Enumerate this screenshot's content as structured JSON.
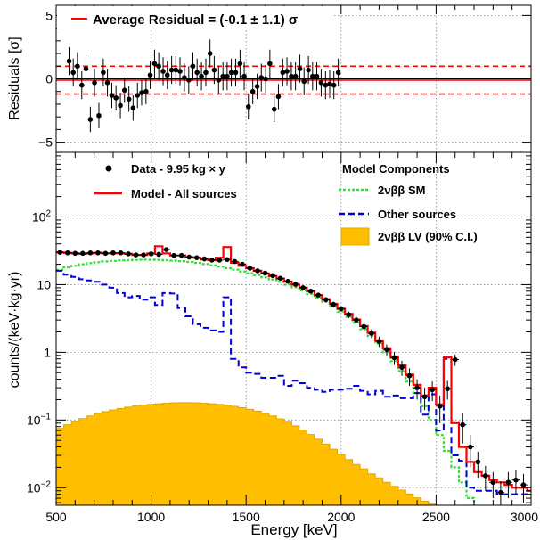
{
  "chart_data": [
    {
      "type": "scatter",
      "panel": "residuals",
      "ylabel": "Residuals [σ]",
      "ylim": [
        -5.8,
        5.8
      ],
      "y_ticks": [
        -5,
        0,
        5
      ],
      "y_tick_labels": [
        "−5",
        "0",
        "5"
      ],
      "grid": true,
      "legend": {
        "placement": "top-left",
        "label": "Average Residual = (-0.1 ± 1.1) σ"
      },
      "colors": {
        "points": "#000000",
        "band": "#ff0000"
      },
      "band": {
        "center": -0.1,
        "width": 1.1
      },
      "points": [
        {
          "x": 568,
          "y": 1.4,
          "err": 1.1
        },
        {
          "x": 590,
          "y": 0.5,
          "err": 1.1
        },
        {
          "x": 612,
          "y": 1.0,
          "err": 1.1
        },
        {
          "x": 635,
          "y": -0.5,
          "err": 1.1
        },
        {
          "x": 657,
          "y": 0.8,
          "err": 1.1
        },
        {
          "x": 680,
          "y": -3.2,
          "err": 1.0
        },
        {
          "x": 702,
          "y": -0.3,
          "err": 1.1
        },
        {
          "x": 725,
          "y": -2.9,
          "err": 1.0
        },
        {
          "x": 748,
          "y": 0.5,
          "err": 1.1
        },
        {
          "x": 770,
          "y": -0.3,
          "err": 1.1
        },
        {
          "x": 793,
          "y": -1.3,
          "err": 1.0
        },
        {
          "x": 815,
          "y": -1.5,
          "err": 1.0
        },
        {
          "x": 838,
          "y": -2.1,
          "err": 1.0
        },
        {
          "x": 860,
          "y": -0.9,
          "err": 1.0
        },
        {
          "x": 883,
          "y": -1.6,
          "err": 1.0
        },
        {
          "x": 905,
          "y": -2.3,
          "err": 1.0
        },
        {
          "x": 928,
          "y": -1.3,
          "err": 1.0
        },
        {
          "x": 950,
          "y": -1.1,
          "err": 1.0
        },
        {
          "x": 973,
          "y": -1.0,
          "err": 1.0
        },
        {
          "x": 995,
          "y": 0.3,
          "err": 1.1
        },
        {
          "x": 1018,
          "y": 1.2,
          "err": 1.1
        },
        {
          "x": 1040,
          "y": 1.0,
          "err": 1.1
        },
        {
          "x": 1063,
          "y": 0.6,
          "err": 1.1
        },
        {
          "x": 1085,
          "y": 0.3,
          "err": 1.1
        },
        {
          "x": 1108,
          "y": 0.7,
          "err": 1.1
        },
        {
          "x": 1130,
          "y": 0.7,
          "err": 1.1
        },
        {
          "x": 1152,
          "y": 0.6,
          "err": 1.1
        },
        {
          "x": 1175,
          "y": 0.1,
          "err": 1.1
        },
        {
          "x": 1198,
          "y": -0.1,
          "err": 1.1
        },
        {
          "x": 1220,
          "y": 1.0,
          "err": 1.1
        },
        {
          "x": 1242,
          "y": 0.5,
          "err": 1.1
        },
        {
          "x": 1265,
          "y": 0.2,
          "err": 1.1
        },
        {
          "x": 1288,
          "y": 0.5,
          "err": 1.1
        },
        {
          "x": 1310,
          "y": 2.0,
          "err": 1.1
        },
        {
          "x": 1332,
          "y": 0.7,
          "err": 1.1
        },
        {
          "x": 1355,
          "y": -0.1,
          "err": 1.1
        },
        {
          "x": 1378,
          "y": 0.2,
          "err": 1.1
        },
        {
          "x": 1400,
          "y": 0.2,
          "err": 1.1
        },
        {
          "x": 1422,
          "y": 0.5,
          "err": 1.1
        },
        {
          "x": 1445,
          "y": 0.5,
          "err": 1.1
        },
        {
          "x": 1468,
          "y": 1.2,
          "err": 1.1
        },
        {
          "x": 1490,
          "y": 0.2,
          "err": 1.1
        },
        {
          "x": 1512,
          "y": -2.2,
          "err": 1.0
        },
        {
          "x": 1535,
          "y": -1.0,
          "err": 1.0
        },
        {
          "x": 1558,
          "y": -0.6,
          "err": 1.0
        },
        {
          "x": 1580,
          "y": 0.1,
          "err": 1.1
        },
        {
          "x": 1603,
          "y": 0.0,
          "err": 1.1
        },
        {
          "x": 1625,
          "y": 1.2,
          "err": 1.1
        },
        {
          "x": 1648,
          "y": -2.4,
          "err": 1.0
        },
        {
          "x": 1670,
          "y": -1.4,
          "err": 1.0
        },
        {
          "x": 1693,
          "y": 0.5,
          "err": 1.1
        },
        {
          "x": 1715,
          "y": 0.6,
          "err": 1.1
        },
        {
          "x": 1738,
          "y": 0.2,
          "err": 1.1
        },
        {
          "x": 1760,
          "y": 0.2,
          "err": 1.1
        },
        {
          "x": 1783,
          "y": 0.8,
          "err": 1.1
        },
        {
          "x": 1805,
          "y": -0.2,
          "err": 1.1
        },
        {
          "x": 1828,
          "y": 0.7,
          "err": 1.1
        },
        {
          "x": 1850,
          "y": 0.2,
          "err": 1.1
        },
        {
          "x": 1872,
          "y": 0.2,
          "err": 1.1
        },
        {
          "x": 1895,
          "y": -0.3,
          "err": 1.1
        },
        {
          "x": 1918,
          "y": -0.5,
          "err": 1.1
        },
        {
          "x": 1940,
          "y": -0.4,
          "err": 1.1
        },
        {
          "x": 1962,
          "y": -0.5,
          "err": 1.1
        },
        {
          "x": 1985,
          "y": 0.5,
          "err": 1.1
        }
      ]
    },
    {
      "type": "line",
      "panel": "spectrum",
      "xlabel": "Energy [keV]",
      "ylabel": "counts/(keV·kg·yr)",
      "xlim": [
        500,
        3000
      ],
      "ylim_log": [
        0.0055,
        900
      ],
      "x_ticks": [
        500,
        1000,
        1500,
        2000,
        2500,
        3000
      ],
      "x_tick_labels": [
        "500",
        "1000",
        "1500",
        "2000",
        "2500",
        "3000"
      ],
      "y_ticks": [
        0.01,
        0.1,
        1,
        10,
        100
      ],
      "grid": true,
      "legend_left": {
        "placement": "top-left",
        "data_label": "Data - 9.95 kg × y",
        "model_label": "Model - All sources"
      },
      "legend_right": {
        "placement": "top-right",
        "title": "Model Components",
        "sm_label": "2νββ SM",
        "other_label": "Other sources",
        "lv_label": "2νββ LV (90% C.I.)"
      },
      "colors": {
        "model": "#ff0000",
        "sm": "#33dd33",
        "other": "#0000dd",
        "lv": "#ffbf00",
        "data": "#000000"
      },
      "bin_edges": [
        500,
        540,
        580,
        620,
        660,
        700,
        740,
        780,
        820,
        860,
        900,
        940,
        980,
        1020,
        1060,
        1100,
        1140,
        1180,
        1220,
        1260,
        1300,
        1340,
        1380,
        1420,
        1460,
        1500,
        1540,
        1580,
        1620,
        1660,
        1700,
        1740,
        1780,
        1820,
        1860,
        1900,
        1940,
        1980,
        2020,
        2060,
        2100,
        2140,
        2180,
        2220,
        2260,
        2300,
        2340,
        2380,
        2420,
        2460,
        2500,
        2540,
        2580,
        2620,
        2660,
        2700,
        2740,
        2780,
        2820,
        2860,
        2900,
        2940,
        2980,
        3020
      ],
      "series": [
        {
          "name": "Model - All sources",
          "values": [
            30,
            29.5,
            29,
            28.5,
            29,
            29.5,
            29,
            29,
            29,
            28.5,
            27.5,
            27.5,
            29,
            37,
            29,
            27,
            27,
            25.5,
            25,
            23.5,
            23,
            25,
            36,
            21,
            19,
            17.5,
            16,
            14.6,
            13.4,
            12.3,
            11.1,
            10.0,
            9.0,
            8.0,
            7.0,
            6.1,
            5.2,
            4.4,
            3.7,
            3.05,
            2.45,
            1.95,
            1.5,
            1.15,
            0.87,
            0.64,
            0.47,
            0.33,
            0.23,
            0.3,
            0.17,
            0.84,
            0.09,
            0.04,
            0.024,
            0.017,
            0.015,
            0.013,
            0.012,
            0.011,
            0.01,
            0.01,
            0.009
          ]
        },
        {
          "name": "2νββ SM",
          "values": [
            16.5,
            18,
            19,
            20,
            20.8,
            21.4,
            22,
            22.4,
            22.8,
            23,
            23.2,
            23.3,
            23.3,
            23.2,
            22.9,
            22.6,
            22.2,
            21.6,
            20.9,
            20.1,
            19.3,
            18.4,
            17.5,
            16.6,
            15.6,
            14.7,
            13.8,
            12.8,
            11.9,
            11.0,
            10.0,
            9.1,
            8.2,
            7.3,
            6.4,
            5.6,
            4.8,
            4.0,
            3.35,
            2.75,
            2.2,
            1.75,
            1.35,
            1.0,
            0.74,
            0.53,
            0.37,
            0.25,
            0.16,
            0.1,
            0.06,
            0.035,
            0.02,
            0.012,
            0.007,
            0.004
          ]
        },
        {
          "name": "Other sources",
          "values": [
            16,
            14,
            13,
            12,
            11.5,
            11,
            10,
            9,
            7.5,
            6.5,
            6.8,
            6.0,
            6.5,
            5,
            7.5,
            7.4,
            4.5,
            3.4,
            2.6,
            2.3,
            2.1,
            2.0,
            6.5,
            0.8,
            0.6,
            0.5,
            0.48,
            0.42,
            0.42,
            0.45,
            0.32,
            0.38,
            0.35,
            0.3,
            0.28,
            0.26,
            0.28,
            0.28,
            0.29,
            0.32,
            0.27,
            0.24,
            0.27,
            0.22,
            0.23,
            0.21,
            0.21,
            0.25,
            0.12,
            0.24,
            0.07,
            0.8,
            0.03,
            0.025,
            0.01,
            0.009,
            0.009,
            0.009,
            0.008,
            0.008,
            0.008,
            0.008,
            0.008
          ]
        },
        {
          "name": "2νββ LV (90% C.I.)",
          "values": [
            0.075,
            0.085,
            0.095,
            0.105,
            0.115,
            0.125,
            0.133,
            0.141,
            0.148,
            0.155,
            0.161,
            0.166,
            0.17,
            0.174,
            0.177,
            0.179,
            0.18,
            0.18,
            0.179,
            0.177,
            0.174,
            0.17,
            0.165,
            0.159,
            0.152,
            0.144,
            0.135,
            0.125,
            0.115,
            0.104,
            0.093,
            0.082,
            0.071,
            0.061,
            0.052,
            0.044,
            0.037,
            0.031,
            0.026,
            0.022,
            0.019,
            0.016,
            0.014,
            0.012,
            0.0105,
            0.0092,
            0.0081,
            0.0071,
            0.0063,
            0.0057
          ]
        }
      ],
      "data_points": [
        {
          "x": 520,
          "y": 30,
          "err": 1.5
        },
        {
          "x": 560,
          "y": 29.5,
          "err": 1.5
        },
        {
          "x": 600,
          "y": 29,
          "err": 1.5
        },
        {
          "x": 640,
          "y": 29,
          "err": 1.5
        },
        {
          "x": 680,
          "y": 29.5,
          "err": 1.5
        },
        {
          "x": 720,
          "y": 29.5,
          "err": 1.5
        },
        {
          "x": 760,
          "y": 29,
          "err": 1.5
        },
        {
          "x": 800,
          "y": 29.5,
          "err": 1.5
        },
        {
          "x": 840,
          "y": 29.5,
          "err": 1.5
        },
        {
          "x": 880,
          "y": 28.5,
          "err": 1.5
        },
        {
          "x": 920,
          "y": 27.5,
          "err": 1.4
        },
        {
          "x": 960,
          "y": 27.5,
          "err": 1.4
        },
        {
          "x": 1000,
          "y": 28.5,
          "err": 1.4
        },
        {
          "x": 1040,
          "y": 28,
          "err": 1.4
        },
        {
          "x": 1080,
          "y": 33,
          "err": 1.6
        },
        {
          "x": 1120,
          "y": 27,
          "err": 1.4
        },
        {
          "x": 1160,
          "y": 27,
          "err": 1.4
        },
        {
          "x": 1200,
          "y": 25.5,
          "err": 1.3
        },
        {
          "x": 1240,
          "y": 25,
          "err": 1.3
        },
        {
          "x": 1280,
          "y": 24,
          "err": 1.3
        },
        {
          "x": 1320,
          "y": 23,
          "err": 1.2
        },
        {
          "x": 1360,
          "y": 23,
          "err": 1.2
        },
        {
          "x": 1400,
          "y": 23.5,
          "err": 1.2
        },
        {
          "x": 1440,
          "y": 22,
          "err": 1.2
        },
        {
          "x": 1480,
          "y": 20,
          "err": 1.1
        },
        {
          "x": 1520,
          "y": 17.5,
          "err": 1.0
        },
        {
          "x": 1560,
          "y": 16,
          "err": 1.0
        },
        {
          "x": 1600,
          "y": 14.8,
          "err": 0.9
        },
        {
          "x": 1640,
          "y": 13.6,
          "err": 0.9
        },
        {
          "x": 1680,
          "y": 12.4,
          "err": 0.8
        },
        {
          "x": 1720,
          "y": 11.2,
          "err": 0.8
        },
        {
          "x": 1760,
          "y": 10.1,
          "err": 0.7
        },
        {
          "x": 1800,
          "y": 9.0,
          "err": 0.7
        },
        {
          "x": 1840,
          "y": 8.0,
          "err": 0.6
        },
        {
          "x": 1880,
          "y": 7.0,
          "err": 0.6
        },
        {
          "x": 1920,
          "y": 6.0,
          "err": 0.5
        },
        {
          "x": 1960,
          "y": 5.1,
          "err": 0.5
        },
        {
          "x": 2000,
          "y": 4.4,
          "err": 0.4
        },
        {
          "x": 2040,
          "y": 3.6,
          "err": 0.4
        },
        {
          "x": 2080,
          "y": 3.0,
          "err": 0.35
        },
        {
          "x": 2120,
          "y": 2.4,
          "err": 0.3
        },
        {
          "x": 2160,
          "y": 1.9,
          "err": 0.28
        },
        {
          "x": 2200,
          "y": 1.45,
          "err": 0.25
        },
        {
          "x": 2240,
          "y": 1.1,
          "err": 0.2
        },
        {
          "x": 2280,
          "y": 0.83,
          "err": 0.18
        },
        {
          "x": 2320,
          "y": 0.6,
          "err": 0.15
        },
        {
          "x": 2360,
          "y": 0.45,
          "err": 0.13
        },
        {
          "x": 2400,
          "y": 0.3,
          "err": 0.1
        },
        {
          "x": 2440,
          "y": 0.22,
          "err": 0.08
        },
        {
          "x": 2480,
          "y": 0.28,
          "err": 0.09
        },
        {
          "x": 2520,
          "y": 0.16,
          "err": 0.07
        },
        {
          "x": 2560,
          "y": 0.29,
          "err": 0.09
        },
        {
          "x": 2600,
          "y": 0.78,
          "err": 0.15
        },
        {
          "x": 2640,
          "y": 0.085,
          "err": 0.04
        },
        {
          "x": 2680,
          "y": 0.04,
          "err": 0.02
        },
        {
          "x": 2720,
          "y": 0.024,
          "err": 0.01
        },
        {
          "x": 2760,
          "y": 0.015,
          "err": 0.006
        },
        {
          "x": 2800,
          "y": 0.012,
          "err": 0.005
        },
        {
          "x": 2840,
          "y": 0.0085,
          "err": 0.004
        },
        {
          "x": 2880,
          "y": 0.012,
          "err": 0.005
        },
        {
          "x": 2920,
          "y": 0.013,
          "err": 0.005
        },
        {
          "x": 2960,
          "y": 0.011,
          "err": 0.005
        }
      ]
    }
  ]
}
